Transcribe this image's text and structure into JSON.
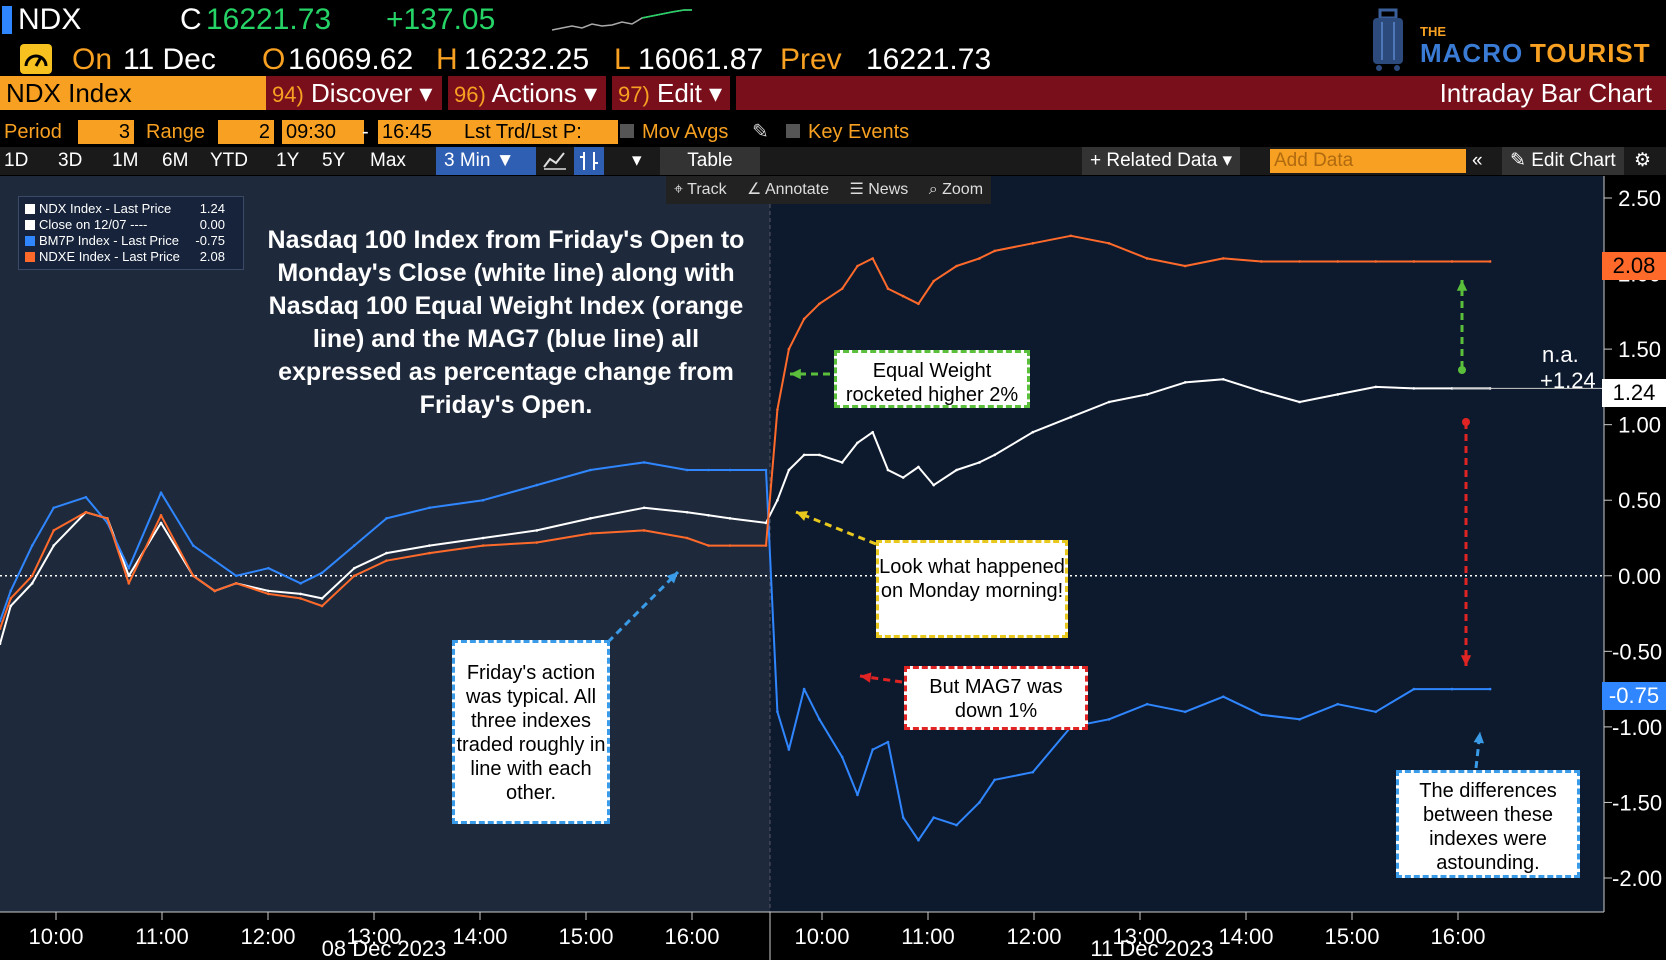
{
  "header": {
    "ticker": "NDX",
    "close_prefix": "C",
    "close_value": "16221.73",
    "change": "+137.05",
    "on_label": "On",
    "date": "11 Dec",
    "open_label": "O",
    "open_value": "16069.62",
    "high_label": "H",
    "high_value": "16232.25",
    "low_label": "L",
    "low_value": "16061.87",
    "prev_label": "Prev",
    "prev_value": "16221.73"
  },
  "brand": {
    "the": "THE",
    "macro": "MACRO",
    "tourist": "TOURIST"
  },
  "nav": {
    "index_field": "NDX Index",
    "discover_num": "94)",
    "discover": "Discover ▾",
    "actions_num": "96)",
    "actions": "Actions ▾",
    "edit_num": "97)",
    "edit": "Edit ▾",
    "chart_type": "Intraday Bar Chart"
  },
  "settings": {
    "period_label": "Period",
    "period_value": "3",
    "range_label": "Range",
    "range_value": "2",
    "time_from": "09:30",
    "dash": "-",
    "time_to": "16:45",
    "price_field": "Lst Trd/Lst P:",
    "mov_avgs": "Mov Avgs",
    "key_events": "Key Events"
  },
  "ranges": [
    "1D",
    "3D",
    "1M",
    "6M",
    "YTD",
    "1Y",
    "5Y",
    "Max"
  ],
  "range_selected": "3 Min ▼",
  "table_label": "Table",
  "related_data": "+ Related Data ▾",
  "add_data_placeholder": "Add Data",
  "edit_chart": "Edit Chart",
  "sub_toolbar": {
    "track": "Track",
    "annotate": "Annotate",
    "news": "News",
    "zoom": "Zoom"
  },
  "legend": [
    {
      "name": "NDX Index - Last Price",
      "value": "1.24",
      "color": "#ffffff"
    },
    {
      "name": "Close on 12/07 ----",
      "value": "0.00",
      "color": "#ffffff"
    },
    {
      "name": "BM7P Index - Last Price",
      "value": "-0.75",
      "color": "#2f86ff"
    },
    {
      "name": "NDXE Index - Last Price",
      "value": "2.08",
      "color": "#ff6a2b"
    }
  ],
  "intro_text": "Nasdaq 100 Index from Friday's Open to Monday's Close (white line) along with Nasdaq 100 Equal Weight Index (orange line) and the MAG7 (blue line) all expressed as percentage change from Friday's Open.",
  "callouts": {
    "equal_weight": "Equal Weight rocketed higher 2%",
    "look": "Look what happened on Monday morning!",
    "mag7": "But MAG7 was down 1%",
    "friday": "Friday's action was typical. All three indexes traded roughly in line with each other.",
    "differences": "The differences between these indexes were astounding."
  },
  "right_labels": {
    "na": "n.a.",
    "na_value": "+1.24"
  },
  "end_values": {
    "ndxe": "2.08",
    "ndx": "1.24",
    "mag7": "-0.75"
  },
  "x_days": [
    "08 Dec 2023",
    "11 Dec 2023"
  ],
  "colors": {
    "ndx": "#ffffff",
    "mag7": "#2f86ff",
    "ndxe": "#ff6a2b",
    "accent": "#f7a021",
    "bar_red": "#7a0f1c"
  },
  "chart_data": {
    "type": "line",
    "ylim": [
      -2.0,
      2.5
    ],
    "yticks": [
      "2.50",
      "2.00",
      "1.50",
      "1.00",
      "0.50",
      "0.00",
      "-0.50",
      "-1.00",
      "-1.50",
      "-2.00"
    ],
    "xticks": [
      "10:00",
      "11:00",
      "12:00",
      "13:00",
      "14:00",
      "15:00",
      "16:00",
      "10:00",
      "11:00",
      "12:00",
      "13:00",
      "14:00",
      "15:00",
      "16:00"
    ],
    "series": [
      {
        "name": "NDX Index - Last Price",
        "color": "#ffffff",
        "x": [
          0.0,
          0.1,
          0.3,
          0.5,
          0.8,
          1.0,
          1.2,
          1.5,
          1.8,
          2.0,
          2.2,
          2.5,
          2.8,
          3.0,
          3.3,
          3.6,
          4.0,
          4.5,
          5.0,
          5.5,
          6.0,
          6.4,
          6.6,
          6.8,
          7.0,
          7.15,
          7.3,
          7.5,
          7.7,
          8.0,
          8.2,
          8.4,
          8.6,
          8.8,
          9.0,
          9.2,
          9.5,
          9.8,
          10.0,
          10.5,
          11.0,
          11.5,
          12.0,
          12.5,
          13.0,
          13.5,
          14.0,
          14.5,
          15.0,
          15.5,
          16.0,
          16.5
        ],
        "y": [
          -0.45,
          -0.2,
          -0.05,
          0.2,
          0.42,
          0.38,
          0.0,
          0.35,
          0.0,
          -0.1,
          -0.05,
          -0.1,
          -0.12,
          -0.15,
          0.05,
          0.15,
          0.2,
          0.25,
          0.3,
          0.38,
          0.45,
          0.42,
          0.4,
          0.38,
          0.35,
          0.5,
          0.7,
          0.8,
          0.8,
          0.75,
          0.88,
          0.95,
          0.7,
          0.65,
          0.72,
          0.6,
          0.7,
          0.75,
          0.8,
          0.95,
          1.05,
          1.15,
          1.2,
          1.28,
          1.3,
          1.22,
          1.15,
          1.2,
          1.25,
          1.24,
          1.24,
          1.24
        ]
      },
      {
        "name": "BM7P Index - Last Price",
        "color": "#2f86ff",
        "x": [
          0.0,
          0.1,
          0.3,
          0.5,
          0.8,
          1.0,
          1.2,
          1.5,
          1.8,
          2.0,
          2.2,
          2.5,
          2.8,
          3.0,
          3.3,
          3.6,
          4.0,
          4.5,
          5.0,
          5.5,
          6.0,
          6.4,
          6.6,
          6.8,
          7.0,
          7.15,
          7.3,
          7.5,
          7.7,
          8.0,
          8.2,
          8.4,
          8.6,
          8.8,
          9.0,
          9.2,
          9.5,
          9.8,
          10.0,
          10.5,
          11.0,
          11.5,
          12.0,
          12.5,
          13.0,
          13.5,
          14.0,
          14.5,
          15.0,
          15.5,
          16.0,
          16.5
        ],
        "y": [
          -0.3,
          -0.1,
          0.2,
          0.45,
          0.52,
          0.35,
          0.05,
          0.55,
          0.2,
          0.1,
          0.0,
          0.05,
          -0.05,
          0.02,
          0.2,
          0.38,
          0.45,
          0.5,
          0.6,
          0.7,
          0.75,
          0.7,
          0.7,
          0.7,
          0.7,
          -0.9,
          -1.15,
          -0.75,
          -0.95,
          -1.2,
          -1.45,
          -1.15,
          -1.1,
          -1.6,
          -1.75,
          -1.6,
          -1.65,
          -1.5,
          -1.35,
          -1.3,
          -1.0,
          -0.95,
          -0.85,
          -0.9,
          -0.8,
          -0.92,
          -0.95,
          -0.85,
          -0.9,
          -0.75,
          -0.75,
          -0.75
        ]
      },
      {
        "name": "NDXE Index - Last Price",
        "color": "#ff6a2b",
        "x": [
          0.0,
          0.1,
          0.3,
          0.5,
          0.8,
          1.0,
          1.2,
          1.5,
          1.8,
          2.0,
          2.2,
          2.5,
          2.8,
          3.0,
          3.3,
          3.6,
          4.0,
          4.5,
          5.0,
          5.5,
          6.0,
          6.4,
          6.6,
          6.8,
          7.0,
          7.15,
          7.3,
          7.5,
          7.7,
          8.0,
          8.2,
          8.4,
          8.6,
          8.8,
          9.0,
          9.2,
          9.5,
          9.8,
          10.0,
          10.5,
          11.0,
          11.5,
          12.0,
          12.5,
          13.0,
          13.5,
          14.0,
          14.5,
          15.0,
          15.5,
          16.0,
          16.5
        ],
        "y": [
          -0.35,
          -0.15,
          0.0,
          0.3,
          0.42,
          0.38,
          -0.05,
          0.4,
          0.0,
          -0.1,
          -0.05,
          -0.12,
          -0.15,
          -0.2,
          0.0,
          0.1,
          0.15,
          0.2,
          0.22,
          0.28,
          0.3,
          0.25,
          0.2,
          0.2,
          0.2,
          1.1,
          1.5,
          1.7,
          1.8,
          1.9,
          2.05,
          2.1,
          1.9,
          1.85,
          1.8,
          1.95,
          2.05,
          2.1,
          2.15,
          2.2,
          2.25,
          2.2,
          2.1,
          2.05,
          2.1,
          2.08,
          2.08,
          2.08,
          2.08,
          2.08,
          2.08,
          2.08
        ]
      },
      {
        "name": "Close on 12/07",
        "color": "#ffffff",
        "x": [
          0,
          16.5
        ],
        "y": [
          0,
          0
        ]
      }
    ]
  }
}
